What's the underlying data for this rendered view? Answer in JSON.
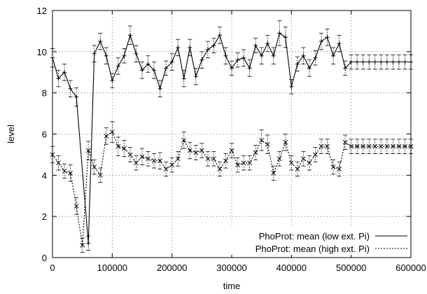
{
  "chart_data": {
    "type": "line",
    "xlabel": "time",
    "ylabel": "level",
    "xlim": [
      0,
      600000
    ],
    "ylim": [
      0,
      12
    ],
    "x_ticks": [
      0,
      100000,
      200000,
      300000,
      400000,
      500000,
      600000
    ],
    "y_ticks": [
      0,
      2,
      4,
      6,
      8,
      10,
      12
    ],
    "x_tick_labels": [
      "0",
      "100000",
      "200000",
      "300000",
      "400000",
      "500000",
      "600000"
    ],
    "y_tick_labels": [
      "0",
      "2",
      "4",
      "6",
      "8",
      "10",
      "12"
    ],
    "grid": true,
    "legend_position": "bottom-right",
    "series": [
      {
        "name": "PhoProt: mean (low ext. Pi)",
        "line_style": "solid",
        "marker": "+",
        "color": "#000000",
        "x": [
          0,
          10000,
          20000,
          30000,
          40000,
          60000,
          70000,
          80000,
          90000,
          100000,
          110000,
          120000,
          130000,
          140000,
          150000,
          160000,
          170000,
          180000,
          190000,
          200000,
          210000,
          220000,
          230000,
          240000,
          250000,
          260000,
          270000,
          280000,
          290000,
          300000,
          310000,
          320000,
          330000,
          340000,
          350000,
          360000,
          370000,
          380000,
          390000,
          400000,
          410000,
          420000,
          430000,
          440000,
          450000,
          460000,
          470000,
          480000,
          490000,
          500000,
          510000,
          520000,
          530000,
          540000,
          550000,
          560000,
          570000,
          580000,
          590000,
          600000
        ],
        "y": [
          9.7,
          8.7,
          9.0,
          8.2,
          7.8,
          0.7,
          9.9,
          10.5,
          9.8,
          8.6,
          9.3,
          9.8,
          10.8,
          9.9,
          9.1,
          9.4,
          9.1,
          8.2,
          9.2,
          9.5,
          10.2,
          8.7,
          10.2,
          8.8,
          9.6,
          10.1,
          10.3,
          10.8,
          9.8,
          9.2,
          9.6,
          9.7,
          9.2,
          10.3,
          9.8,
          10.4,
          9.8,
          10.9,
          10.7,
          8.3,
          9.4,
          9.8,
          9.2,
          9.7,
          10.5,
          10.7,
          9.8,
          10.4,
          9.2,
          9.5,
          9.5,
          9.5,
          9.5,
          9.5,
          9.5,
          9.5,
          9.5,
          9.5,
          9.5,
          9.5
        ],
        "errors": [
          0.45,
          0.4,
          0.4,
          0.4,
          0.45,
          0.35,
          0.4,
          0.4,
          0.4,
          0.35,
          0.4,
          0.35,
          0.45,
          0.4,
          0.4,
          0.4,
          0.4,
          0.4,
          0.35,
          0.4,
          0.4,
          0.4,
          0.4,
          0.4,
          0.4,
          0.4,
          0.35,
          0.4,
          0.4,
          0.35,
          0.35,
          0.4,
          0.4,
          0.35,
          0.4,
          0.4,
          0.4,
          0.6,
          0.5,
          0.35,
          0.35,
          0.4,
          0.4,
          0.35,
          0.4,
          0.4,
          0.4,
          0.4,
          0.35,
          0.35,
          0.35,
          0.35,
          0.35,
          0.35,
          0.35,
          0.35,
          0.35,
          0.35,
          0.35,
          0.35
        ]
      },
      {
        "name": "PhoProt: mean (high ext. Pi)",
        "line_style": "dotted",
        "marker": "x",
        "color": "#000000",
        "x": [
          0,
          10000,
          20000,
          30000,
          40000,
          50000,
          60000,
          70000,
          80000,
          90000,
          100000,
          110000,
          120000,
          130000,
          140000,
          150000,
          160000,
          170000,
          180000,
          190000,
          200000,
          210000,
          220000,
          230000,
          240000,
          250000,
          260000,
          270000,
          280000,
          290000,
          300000,
          310000,
          320000,
          330000,
          340000,
          350000,
          360000,
          370000,
          380000,
          390000,
          400000,
          410000,
          420000,
          430000,
          440000,
          450000,
          460000,
          470000,
          480000,
          490000,
          500000,
          510000,
          520000,
          530000,
          540000,
          550000,
          560000,
          570000,
          580000,
          590000,
          600000
        ],
        "y": [
          5.0,
          4.6,
          4.2,
          4.1,
          2.5,
          0.6,
          5.2,
          4.4,
          4.0,
          5.9,
          6.1,
          5.4,
          5.3,
          5.0,
          4.6,
          4.9,
          4.8,
          4.7,
          4.7,
          4.3,
          4.5,
          4.8,
          5.7,
          5.2,
          5.1,
          5.2,
          4.8,
          4.8,
          4.3,
          4.7,
          5.2,
          4.5,
          4.6,
          4.6,
          5.1,
          5.7,
          5.5,
          4.1,
          4.8,
          5.6,
          4.6,
          4.3,
          4.8,
          4.6,
          5.0,
          5.4,
          5.4,
          4.4,
          4.3,
          5.6,
          5.4,
          5.4,
          5.4,
          5.4,
          5.4,
          5.4,
          5.4,
          5.4,
          5.4,
          5.4,
          5.4
        ],
        "errors": [
          0.4,
          0.35,
          0.35,
          0.4,
          0.4,
          0.35,
          0.45,
          0.35,
          0.35,
          0.4,
          0.5,
          0.45,
          0.4,
          0.35,
          0.35,
          0.4,
          0.35,
          0.35,
          0.4,
          0.35,
          0.35,
          0.35,
          0.4,
          0.4,
          0.35,
          0.35,
          0.35,
          0.35,
          0.35,
          0.35,
          0.35,
          0.35,
          0.35,
          0.35,
          0.35,
          0.5,
          0.45,
          0.35,
          0.35,
          0.4,
          0.35,
          0.35,
          0.35,
          0.35,
          0.35,
          0.35,
          0.35,
          0.35,
          0.35,
          0.35,
          0.35,
          0.35,
          0.35,
          0.35,
          0.35,
          0.35,
          0.35,
          0.35,
          0.35,
          0.35,
          0.35
        ]
      }
    ]
  }
}
